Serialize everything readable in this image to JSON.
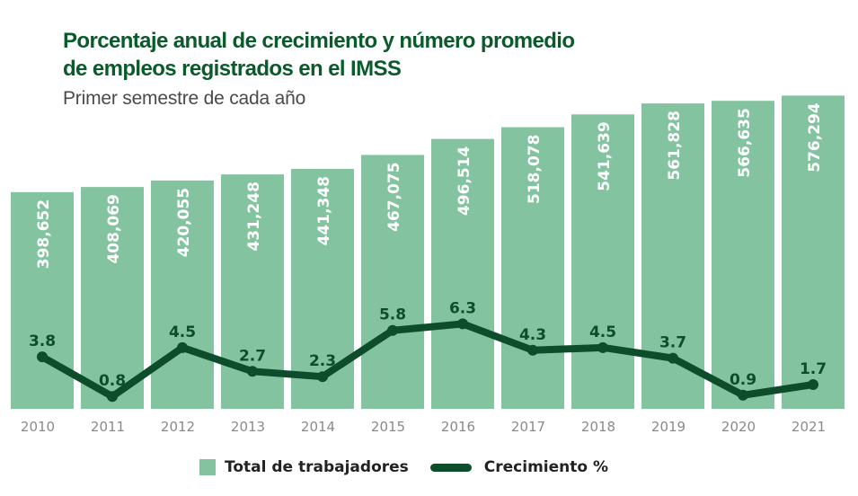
{
  "chart_data": {
    "type": "bar",
    "title": "Porcentaje anual de crecimiento y número promedio de empleos registrados en el IMSS",
    "title_lines": [
      "Porcentaje anual de crecimiento y número promedio",
      "de empleos registrados en el IMSS"
    ],
    "subtitle": "Primer semestre de cada año",
    "categories": [
      "2010",
      "2011",
      "2012",
      "2013",
      "2014",
      "2015",
      "2016",
      "2017",
      "2018",
      "2019",
      "2020",
      "2021"
    ],
    "series": [
      {
        "name": "Total de trabajadores",
        "type": "bar",
        "color": "#84c3a0",
        "values": [
          398652,
          408069,
          420055,
          431248,
          441348,
          467075,
          496514,
          518078,
          541639,
          561828,
          566635,
          576294
        ],
        "labels": [
          "398,652",
          "408,069",
          "420,055",
          "431,248",
          "441,348",
          "467,075",
          "496,514",
          "518,078",
          "541,639",
          "561,828",
          "566,635",
          "576,294"
        ]
      },
      {
        "name": "Crecimiento %",
        "type": "line",
        "color": "#0d4d2b",
        "values": [
          3.8,
          0.8,
          4.5,
          2.7,
          2.3,
          5.8,
          6.3,
          4.3,
          4.5,
          3.7,
          0.9,
          1.7
        ],
        "labels": [
          "3.8",
          "0.8",
          "4.5",
          "2.7",
          "2.3",
          "5.8",
          "6.3",
          "4.3",
          "4.5",
          "3.7",
          "0.9",
          "1.7"
        ]
      }
    ],
    "ylim_bars": [
      0,
      600000
    ],
    "grid": false,
    "legend": "bottom-center"
  },
  "legend": {
    "bars": "Total de trabajadores",
    "line": "Crecimiento %"
  }
}
